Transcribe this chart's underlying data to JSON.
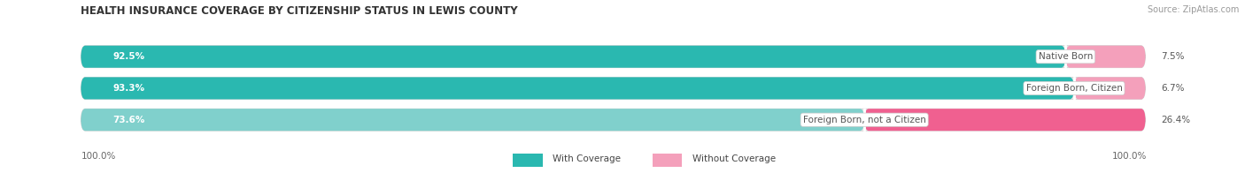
{
  "title": "HEALTH INSURANCE COVERAGE BY CITIZENSHIP STATUS IN LEWIS COUNTY",
  "source": "Source: ZipAtlas.com",
  "categories": [
    "Native Born",
    "Foreign Born, Citizen",
    "Foreign Born, not a Citizen"
  ],
  "with_coverage": [
    92.5,
    93.3,
    73.6
  ],
  "without_coverage": [
    7.5,
    6.7,
    26.4
  ],
  "color_with_row0": "#2ab8b0",
  "color_with_row1": "#2ab8b0",
  "color_with_row2": "#80d0cc",
  "color_without_row0": "#f4a0bb",
  "color_without_row1": "#f4a0bb",
  "color_without_row2": "#f06090",
  "color_bar_bg": "#e8e8e8",
  "title_fontsize": 8.5,
  "source_fontsize": 7,
  "label_fontsize": 7.5,
  "cat_fontsize": 7.5,
  "axis_label_fontsize": 7.5,
  "legend_fontsize": 7.5,
  "fig_bg": "#ffffff",
  "x_left_label": "100.0%",
  "x_right_label": "100.0%"
}
